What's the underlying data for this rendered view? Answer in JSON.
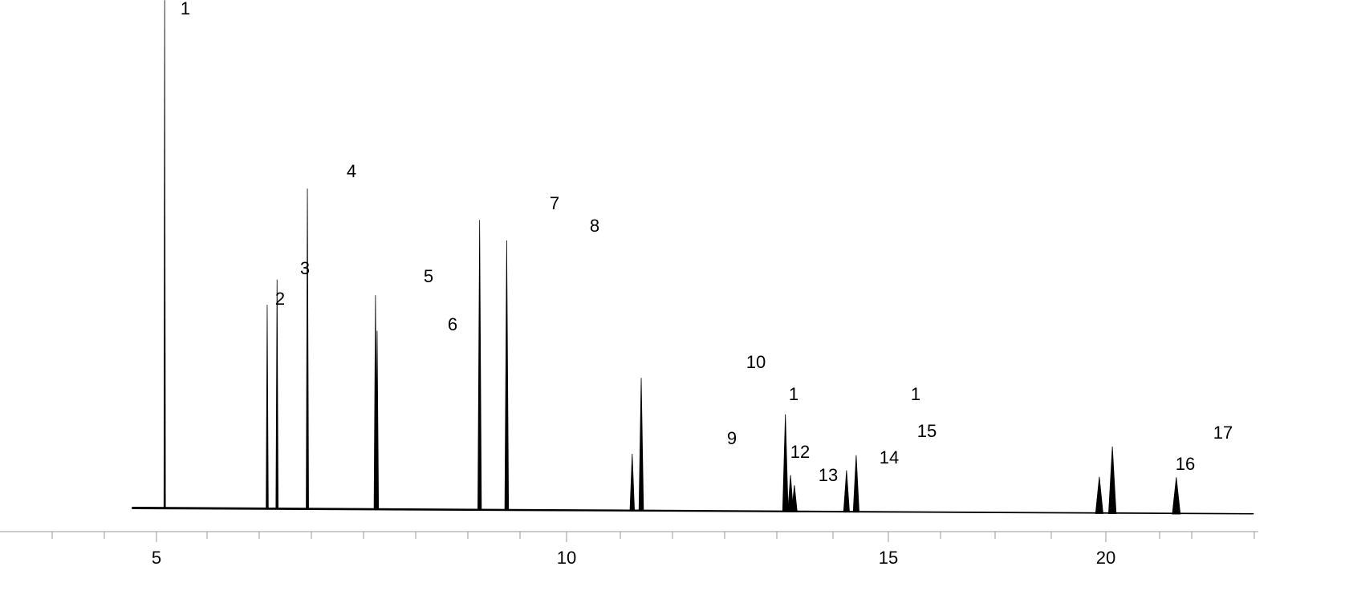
{
  "chart_data": {
    "type": "chromatogram",
    "x": [
      5.1,
      6.35,
      6.47,
      6.84,
      7.67,
      7.69,
      8.94,
      9.27,
      11.02,
      11.16,
      13.4,
      13.48,
      13.54,
      14.35,
      14.5,
      19.85,
      20.15,
      21.62
    ],
    "values": [
      100,
      40,
      45,
      63,
      42,
      35,
      57,
      53,
      11,
      26,
      19,
      7,
      5,
      8,
      11,
      7,
      13,
      7
    ],
    "color": "#000000",
    "xlim": [
      4.7,
      23.4
    ],
    "xticks": [
      5,
      10,
      15,
      20
    ],
    "ylim": [
      0,
      100
    ],
    "annotations": [
      "1",
      "2",
      "3",
      "4",
      "5",
      "6",
      "7",
      "8",
      "9",
      "10",
      "1",
      "12",
      "13",
      "14",
      "1",
      "15",
      "16",
      "17"
    ]
  }
}
